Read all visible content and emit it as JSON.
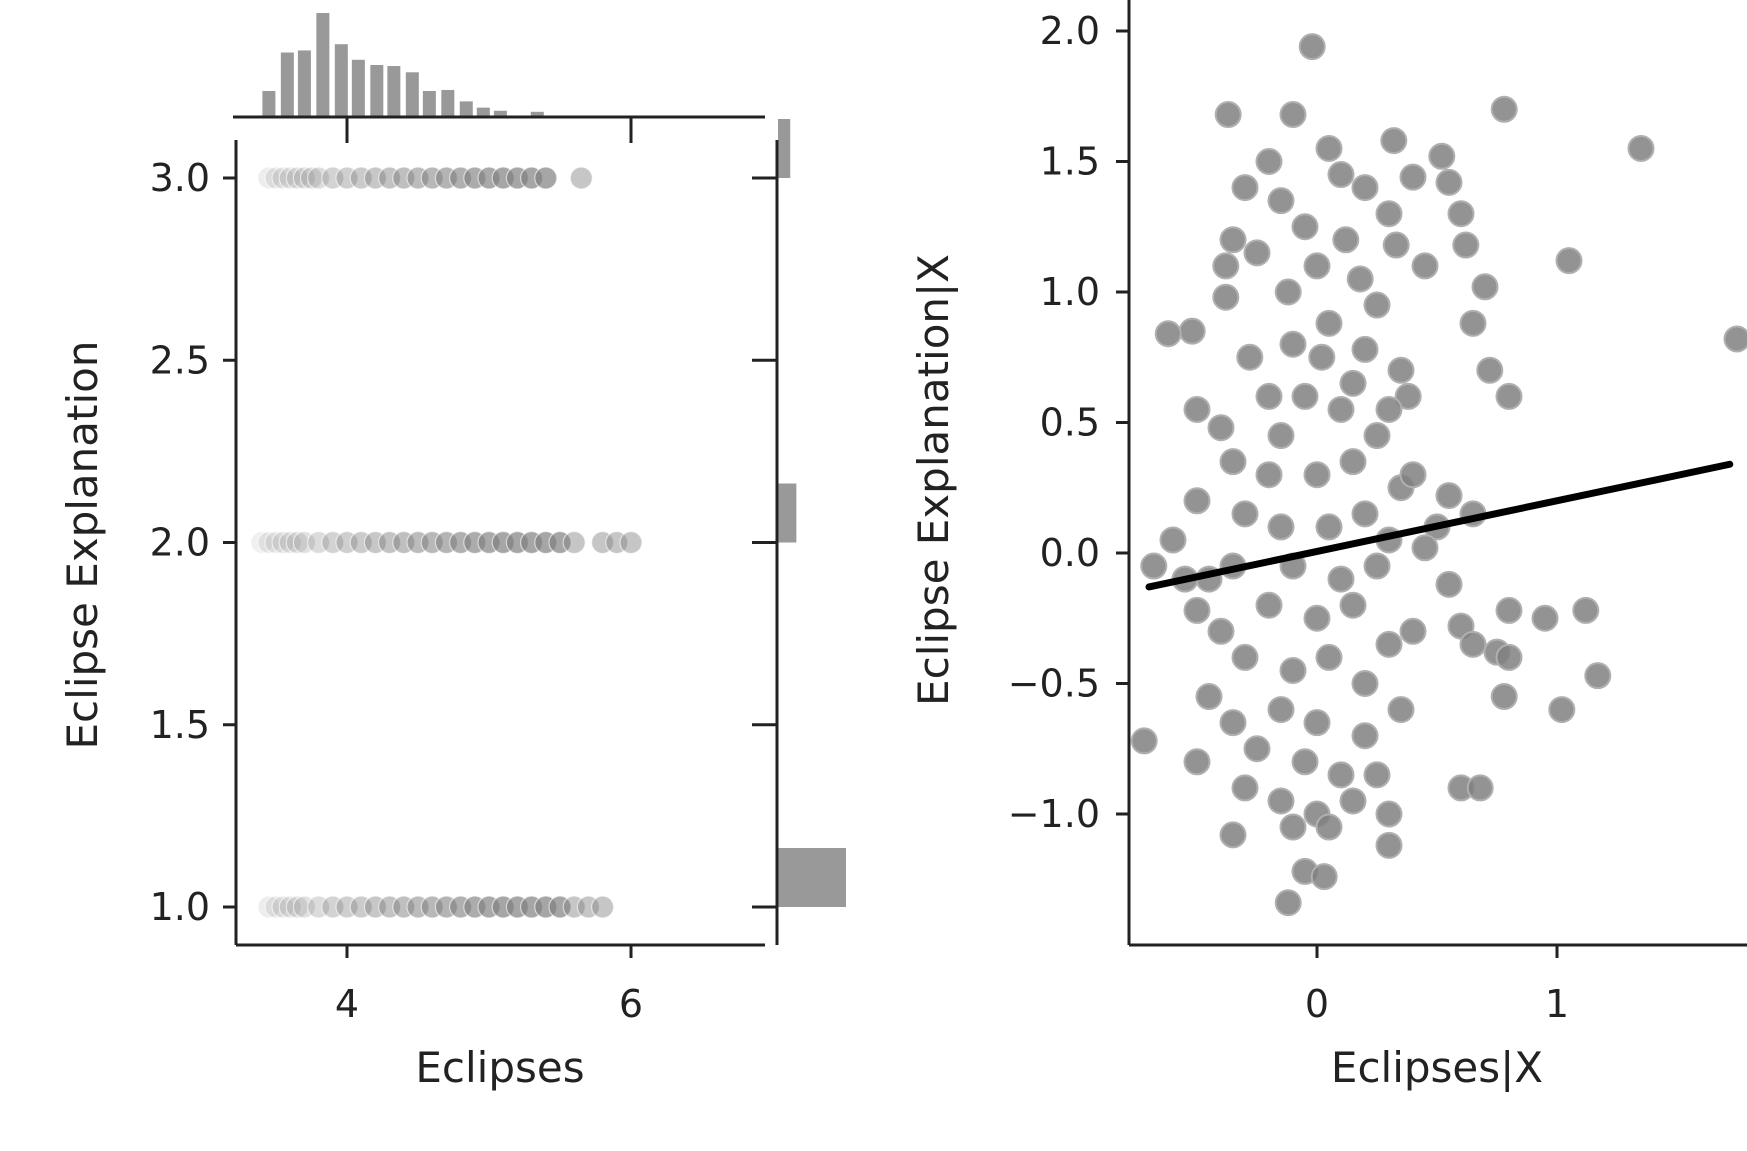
{
  "colors": {
    "axis": "#222222",
    "bar": "#999999",
    "point": "#808080",
    "fit_line": "#000000"
  },
  "chart_data": [
    {
      "type": "scatter",
      "panel": "joint",
      "title": "",
      "xlabel": "Eclipses",
      "ylabel": "Eclipse Explanation",
      "xlim": [
        3.2,
        6.9
      ],
      "ylim": [
        0.9,
        3.1
      ],
      "x_ticks": [
        4,
        6
      ],
      "x_tick_labels": [
        "4",
        "6"
      ],
      "y_ticks": [
        1.0,
        1.5,
        2.0,
        2.5,
        3.0
      ],
      "y_tick_labels": [
        "1.0",
        "1.5",
        "2.0",
        "2.5",
        "3.0"
      ],
      "grid": false,
      "series": [
        {
          "y": 3.0,
          "x": [
            3.45,
            3.5,
            3.55,
            3.6,
            3.65,
            3.7,
            3.75,
            3.8,
            3.9,
            4.0,
            4.1,
            4.2,
            4.3,
            4.4,
            4.5,
            4.6,
            4.7,
            4.8,
            4.9,
            5.0,
            5.1,
            5.2,
            5.3,
            5.4,
            5.65
          ]
        },
        {
          "y": 2.0,
          "x": [
            3.4,
            3.45,
            3.5,
            3.55,
            3.6,
            3.65,
            3.7,
            3.8,
            3.9,
            4.0,
            4.1,
            4.2,
            4.3,
            4.4,
            4.5,
            4.6,
            4.7,
            4.8,
            4.9,
            5.0,
            5.1,
            5.2,
            5.3,
            5.4,
            5.5,
            5.6,
            5.8,
            5.9,
            6.0
          ]
        },
        {
          "y": 1.0,
          "x": [
            3.45,
            3.5,
            3.55,
            3.6,
            3.65,
            3.7,
            3.8,
            3.9,
            4.0,
            4.1,
            4.2,
            4.3,
            4.4,
            4.5,
            4.6,
            4.7,
            4.8,
            4.9,
            5.0,
            5.1,
            5.2,
            5.3,
            5.4,
            5.5,
            5.6,
            5.7,
            5.8
          ]
        }
      ],
      "marginal_x_hist": {
        "bin_centers": [
          3.45,
          3.58,
          3.7,
          3.83,
          3.96,
          4.08,
          4.21,
          4.33,
          4.46,
          4.58,
          4.71,
          4.84,
          4.96,
          5.08,
          5.21,
          5.34
        ],
        "counts": [
          25,
          62,
          64,
          100,
          70,
          55,
          50,
          49,
          43,
          25,
          26,
          15,
          9,
          6,
          1,
          5
        ]
      },
      "marginal_y_hist": {
        "categories": [
          1.0,
          2.0,
          3.0
        ],
        "counts": [
          100,
          27,
          18
        ]
      }
    },
    {
      "type": "scatter",
      "panel": "partial-regression",
      "title": "",
      "xlabel": "Eclipses|X",
      "ylabel": "Eclipse Explanation|X",
      "xlim": [
        -0.8,
        1.75
      ],
      "ylim": [
        -1.5,
        2.1
      ],
      "x_ticks": [
        0,
        1
      ],
      "x_tick_labels": [
        "0",
        "1"
      ],
      "y_ticks": [
        -1.0,
        -0.5,
        0.0,
        0.5,
        1.0,
        1.5,
        2.0
      ],
      "y_tick_labels": [
        "−1.0",
        "−0.5",
        "0.0",
        "0.5",
        "1.0",
        "1.5",
        "2.0"
      ],
      "grid": false,
      "points": [
        [
          -0.02,
          1.94
        ],
        [
          -0.37,
          1.68
        ],
        [
          -0.1,
          1.68
        ],
        [
          0.32,
          1.58
        ],
        [
          0.78,
          1.7
        ],
        [
          1.35,
          1.55
        ],
        [
          0.52,
          1.52
        ],
        [
          0.55,
          1.42
        ],
        [
          0.4,
          1.44
        ],
        [
          0.6,
          1.3
        ],
        [
          -0.2,
          1.5
        ],
        [
          -0.3,
          1.4
        ],
        [
          0.05,
          1.55
        ],
        [
          0.1,
          1.45
        ],
        [
          -0.15,
          1.35
        ],
        [
          0.2,
          1.4
        ],
        [
          0.3,
          1.3
        ],
        [
          -0.35,
          1.2
        ],
        [
          0.62,
          1.18
        ],
        [
          0.33,
          1.18
        ],
        [
          0.45,
          1.1
        ],
        [
          1.05,
          1.12
        ],
        [
          -0.38,
          1.1
        ],
        [
          0.7,
          1.02
        ],
        [
          -0.05,
          1.25
        ],
        [
          0.12,
          1.2
        ],
        [
          -0.25,
          1.15
        ],
        [
          0.18,
          1.05
        ],
        [
          0.0,
          1.1
        ],
        [
          -0.12,
          1.0
        ],
        [
          0.25,
          0.95
        ],
        [
          0.65,
          0.88
        ],
        [
          -0.38,
          0.98
        ],
        [
          0.05,
          0.88
        ],
        [
          0.8,
          0.6
        ],
        [
          0.72,
          0.7
        ],
        [
          1.75,
          0.82
        ],
        [
          -0.52,
          0.85
        ],
        [
          -0.62,
          0.84
        ],
        [
          -0.28,
          0.75
        ],
        [
          -0.1,
          0.8
        ],
        [
          0.02,
          0.75
        ],
        [
          0.2,
          0.78
        ],
        [
          0.35,
          0.7
        ],
        [
          0.15,
          0.65
        ],
        [
          -0.05,
          0.6
        ],
        [
          0.1,
          0.55
        ],
        [
          -0.2,
          0.6
        ],
        [
          -0.15,
          0.45
        ],
        [
          0.38,
          0.6
        ],
        [
          -0.5,
          0.55
        ],
        [
          -0.4,
          0.48
        ],
        [
          0.25,
          0.45
        ],
        [
          0.3,
          0.55
        ],
        [
          -0.35,
          0.35
        ],
        [
          -0.2,
          0.3
        ],
        [
          0.0,
          0.3
        ],
        [
          0.15,
          0.35
        ],
        [
          0.35,
          0.25
        ],
        [
          0.4,
          0.3
        ],
        [
          0.55,
          0.22
        ],
        [
          -0.5,
          0.2
        ],
        [
          -0.6,
          0.05
        ],
        [
          -0.78,
          0.05
        ],
        [
          -0.68,
          -0.05
        ],
        [
          0.65,
          0.15
        ],
        [
          0.5,
          0.1
        ],
        [
          0.45,
          0.02
        ],
        [
          -0.3,
          0.15
        ],
        [
          -0.15,
          0.1
        ],
        [
          0.05,
          0.1
        ],
        [
          0.2,
          0.15
        ],
        [
          0.3,
          0.05
        ],
        [
          0.55,
          -0.12
        ],
        [
          -0.45,
          -0.1
        ],
        [
          -0.55,
          -0.1
        ],
        [
          -0.35,
          -0.05
        ],
        [
          -0.1,
          -0.05
        ],
        [
          0.1,
          -0.1
        ],
        [
          0.25,
          -0.05
        ],
        [
          0.6,
          -0.28
        ],
        [
          0.65,
          -0.35
        ],
        [
          0.75,
          -0.38
        ],
        [
          0.8,
          -0.22
        ],
        [
          0.95,
          -0.25
        ],
        [
          1.12,
          -0.22
        ],
        [
          0.8,
          -0.4
        ],
        [
          0.4,
          -0.3
        ],
        [
          -0.5,
          -0.22
        ],
        [
          -0.4,
          -0.3
        ],
        [
          -0.2,
          -0.2
        ],
        [
          0.0,
          -0.25
        ],
        [
          0.15,
          -0.2
        ],
        [
          0.3,
          -0.35
        ],
        [
          -0.3,
          -0.4
        ],
        [
          -0.1,
          -0.45
        ],
        [
          0.05,
          -0.4
        ],
        [
          0.2,
          -0.5
        ],
        [
          1.17,
          -0.47
        ],
        [
          0.78,
          -0.55
        ],
        [
          1.02,
          -0.6
        ],
        [
          -0.45,
          -0.55
        ],
        [
          -0.35,
          -0.65
        ],
        [
          -0.15,
          -0.6
        ],
        [
          0.0,
          -0.65
        ],
        [
          0.2,
          -0.7
        ],
        [
          0.35,
          -0.6
        ],
        [
          -0.25,
          -0.75
        ],
        [
          -0.05,
          -0.8
        ],
        [
          0.1,
          -0.85
        ],
        [
          -0.72,
          -0.72
        ],
        [
          -0.5,
          -0.8
        ],
        [
          -0.3,
          -0.9
        ],
        [
          0.25,
          -0.85
        ],
        [
          0.6,
          -0.9
        ],
        [
          0.68,
          -0.9
        ],
        [
          -0.15,
          -0.95
        ],
        [
          0.0,
          -1.0
        ],
        [
          0.15,
          -0.95
        ],
        [
          -0.35,
          -1.08
        ],
        [
          -0.1,
          -1.05
        ],
        [
          0.05,
          -1.05
        ],
        [
          0.3,
          -1.0
        ],
        [
          0.3,
          -1.12
        ],
        [
          -0.05,
          -1.22
        ],
        [
          0.03,
          -1.24
        ],
        [
          -0.12,
          -1.34
        ]
      ],
      "fit_line": {
        "x": [
          -0.7,
          1.72
        ],
        "y": [
          -0.13,
          0.34
        ]
      }
    }
  ]
}
